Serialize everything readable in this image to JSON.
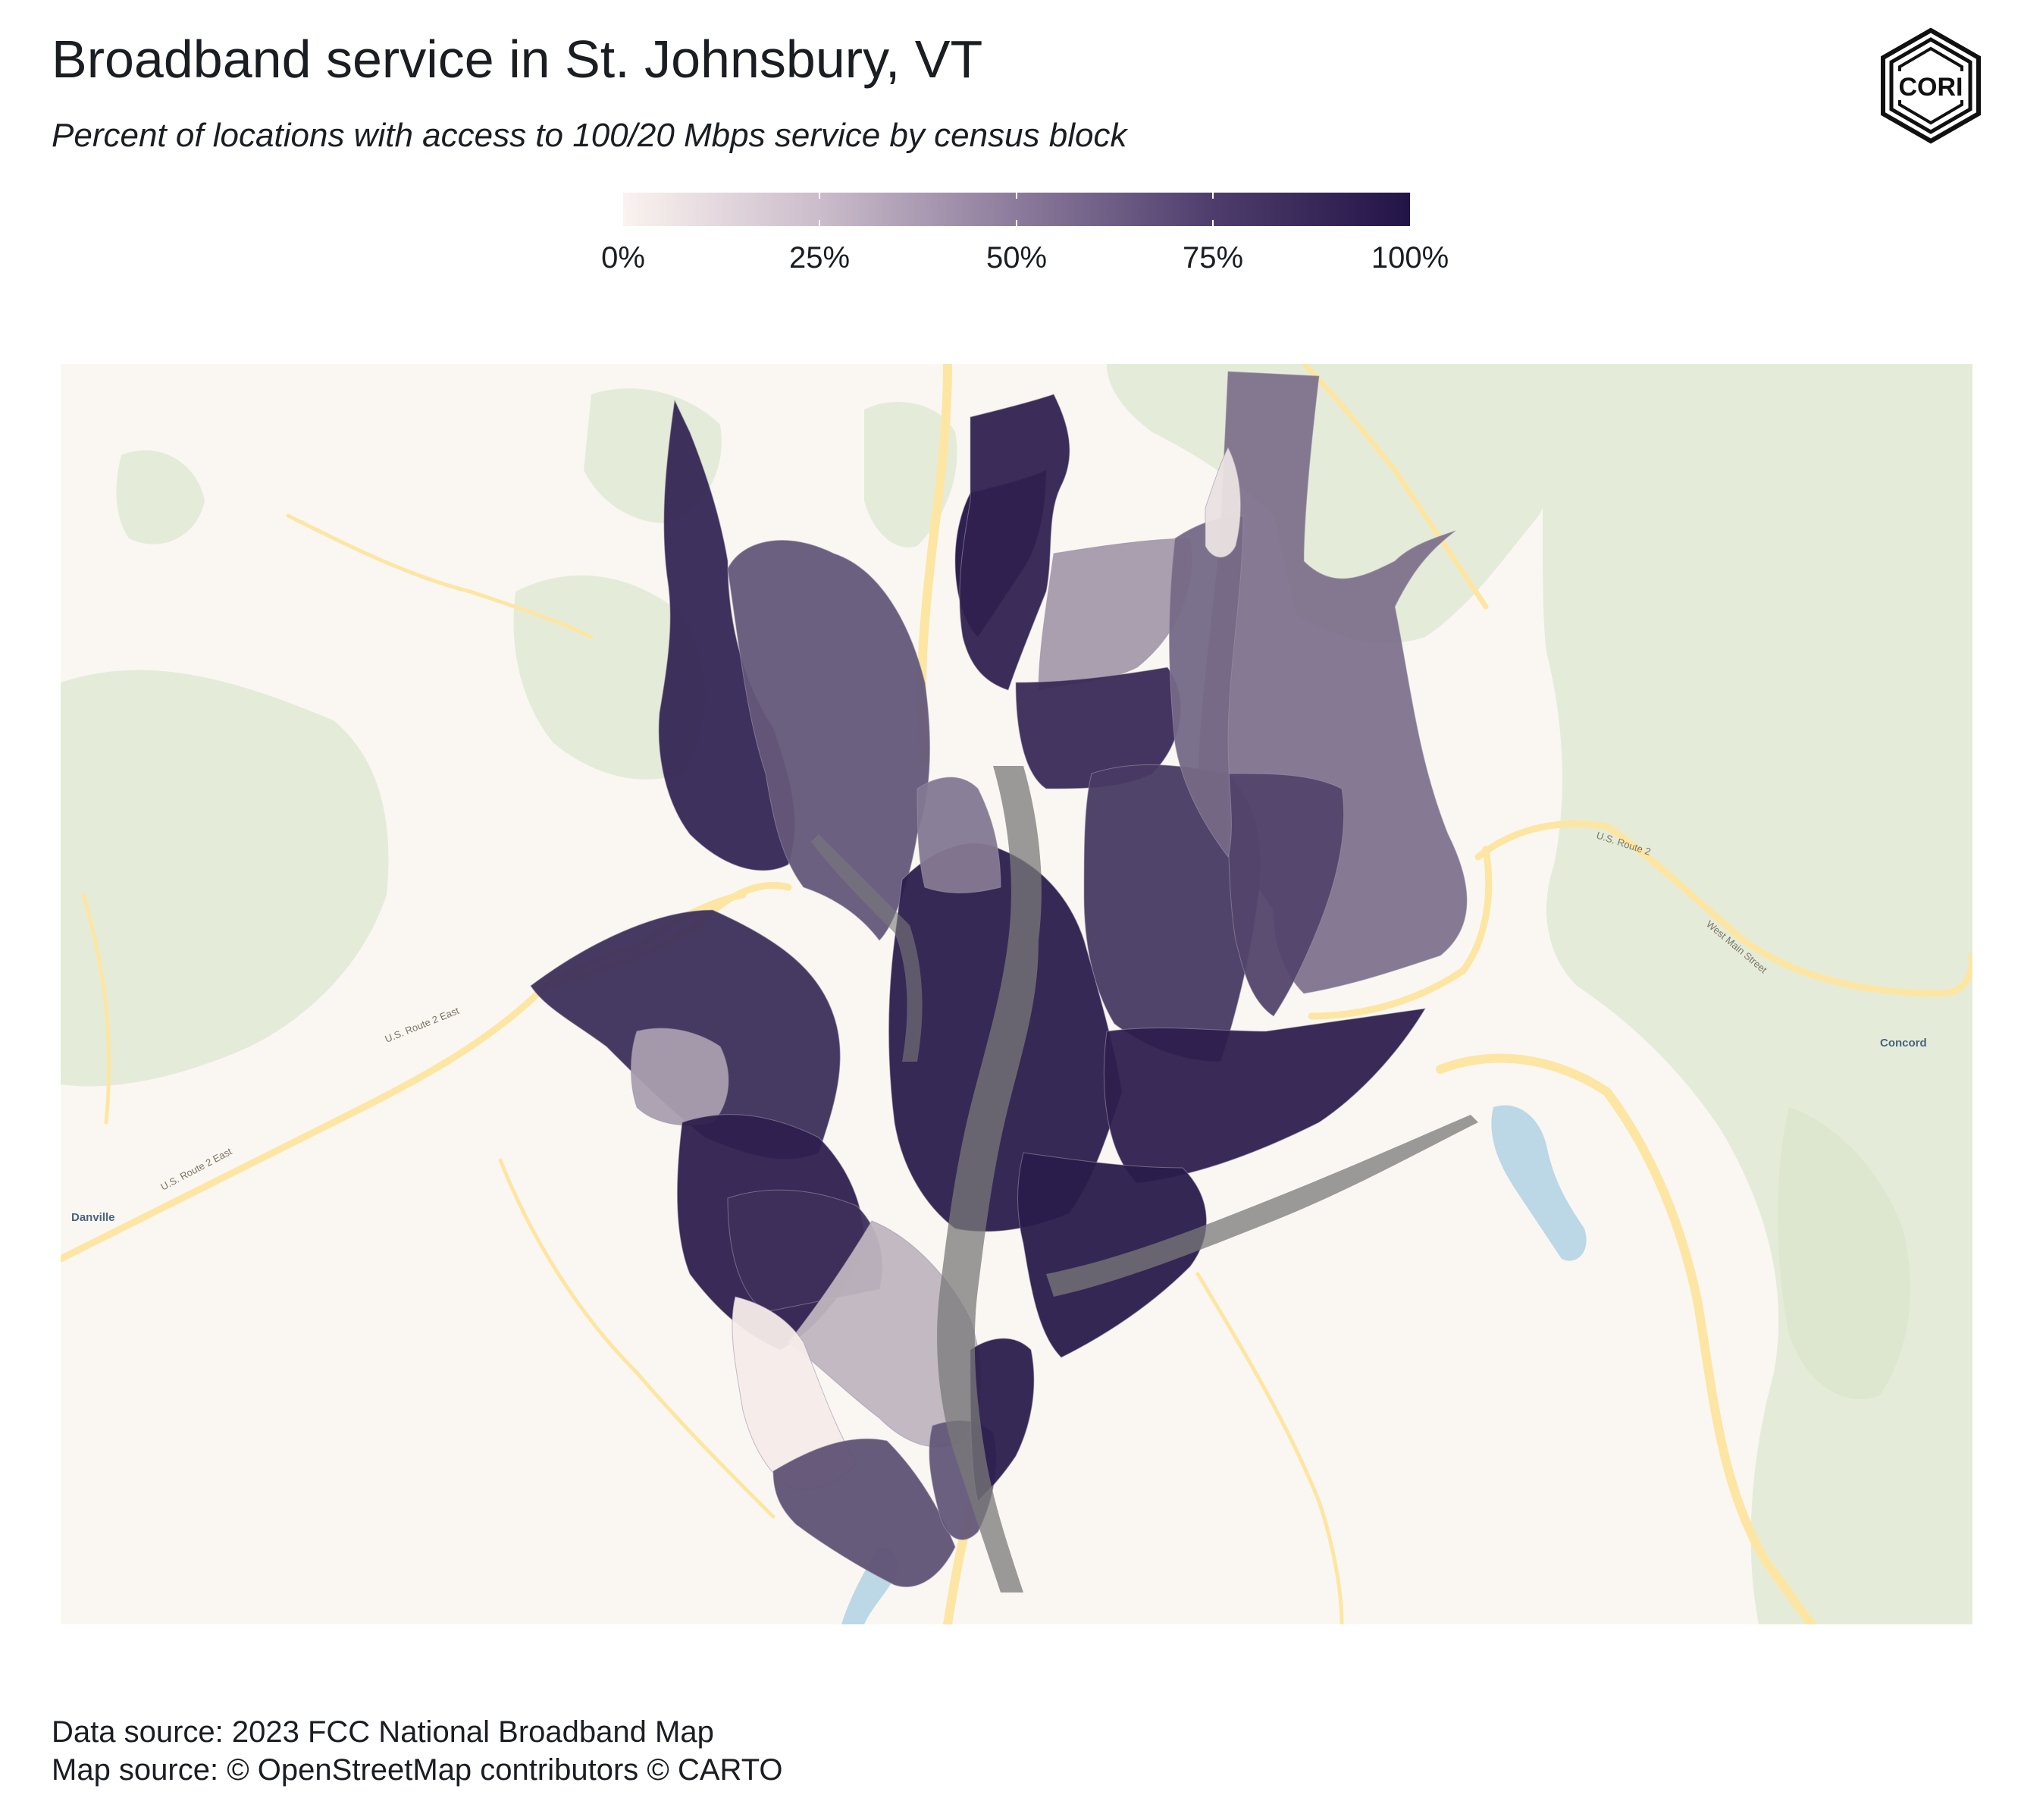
{
  "title": "Broadband service in St. Johnsbury, VT",
  "subtitle": "Percent of locations with access to 100/20 Mbps service by census block",
  "logo": {
    "icon": "cori-logo",
    "text": "CORI"
  },
  "legend": {
    "ticks": [
      "0%",
      "25%",
      "50%",
      "75%",
      "100%"
    ],
    "color_low": "#fbf3ef",
    "color_high": "#231446"
  },
  "map": {
    "place_labels": [
      "Danville",
      "Concord"
    ],
    "road_labels": [
      "U.S. Route 2 East",
      "U.S. Route 2",
      "West Main Street",
      "U.S. Route 2 East"
    ],
    "colors": {
      "land": "#faf7f2",
      "forest": "#e4ecd9",
      "road": "#fde6a3",
      "water": "#bcd8e6",
      "unknown_block": "#7a7a7a"
    },
    "census_blocks": [
      {
        "id": "b1",
        "pct": 92
      },
      {
        "id": "b2",
        "pct": 70
      },
      {
        "id": "b3",
        "pct": 88
      },
      {
        "id": "b4",
        "pct": 100
      },
      {
        "id": "b5",
        "pct": 40
      },
      {
        "id": "b6",
        "pct": 58
      },
      {
        "id": "b7",
        "pct": 94
      },
      {
        "id": "b8",
        "pct": 90
      },
      {
        "id": "b9",
        "pct": 83
      },
      {
        "id": "b10",
        "pct": 78
      },
      {
        "id": "b11",
        "pct": 62
      },
      {
        "id": "b12",
        "pct": 96
      },
      {
        "id": "b13",
        "pct": 38
      },
      {
        "id": "b14",
        "pct": 95
      },
      {
        "id": "b15",
        "pct": 88
      },
      {
        "id": "b16",
        "pct": 95
      },
      {
        "id": "b17",
        "pct": 97
      },
      {
        "id": "b18",
        "pct": 28
      },
      {
        "id": "b19",
        "pct": 3
      },
      {
        "id": "b20",
        "pct": 72
      },
      {
        "id": "b21",
        "pct": 70
      },
      {
        "id": "b22",
        "pct": 96
      },
      {
        "id": "b23",
        "pct": 55
      },
      {
        "id": "b24",
        "pct": 8
      }
    ]
  },
  "footer": {
    "data_source": "Data source: 2023 FCC National Broadband Map",
    "map_source": "Map source: © OpenStreetMap contributors © CARTO"
  }
}
